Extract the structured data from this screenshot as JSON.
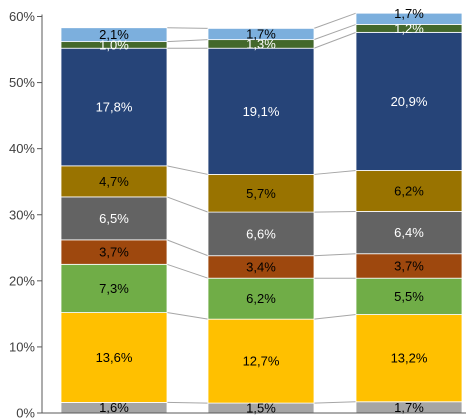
{
  "chart_data": {
    "type": "bar",
    "stacked": true,
    "categories": [
      "",
      "",
      ""
    ],
    "ylim": [
      0,
      60
    ],
    "yticks": [
      0,
      10,
      20,
      30,
      40,
      50,
      60
    ],
    "ytick_labels": [
      "0%",
      "10%",
      "20%",
      "30%",
      "40%",
      "50%",
      "60%"
    ],
    "grid": false,
    "legend": "none",
    "series_lines": true,
    "series": [
      {
        "values": [
          1.6,
          1.5,
          1.7
        ],
        "labels": [
          "1,6%",
          "1,5%",
          "1,7%"
        ],
        "color": "#a5a5a5",
        "label_color": "#000000"
      },
      {
        "values": [
          13.6,
          12.7,
          13.2
        ],
        "labels": [
          "13,6%",
          "12,7%",
          "13,2%"
        ],
        "color": "#ffc000",
        "label_color": "#000000"
      },
      {
        "values": [
          7.3,
          6.2,
          5.5
        ],
        "labels": [
          "7,3%",
          "6,2%",
          "5,5%"
        ],
        "color": "#70ad47",
        "label_color": "#000000"
      },
      {
        "values": [
          3.7,
          3.4,
          3.7
        ],
        "labels": [
          "3,7%",
          "3,4%",
          "3,7%"
        ],
        "color": "#9e480e",
        "label_color": "#000000"
      },
      {
        "values": [
          6.5,
          6.6,
          6.4
        ],
        "labels": [
          "6,5%",
          "6,6%",
          "6,4%"
        ],
        "color": "#636363",
        "label_color": "#ffffff"
      },
      {
        "values": [
          4.7,
          5.7,
          6.2
        ],
        "labels": [
          "4,7%",
          "5,7%",
          "6,2%"
        ],
        "color": "#997300",
        "label_color": "#000000"
      },
      {
        "values": [
          17.8,
          19.1,
          20.9
        ],
        "labels": [
          "17,8%",
          "19,1%",
          "20,9%"
        ],
        "color": "#264478",
        "label_color": "#ffffff"
      },
      {
        "values": [
          1.0,
          1.3,
          1.2
        ],
        "labels": [
          "1,0%",
          "1,3%",
          "1,2%"
        ],
        "color": "#43682b",
        "label_color": "#ffffff"
      },
      {
        "values": [
          2.1,
          1.7,
          1.7
        ],
        "labels": [
          "2,1%",
          "1,7%",
          "1,7%"
        ],
        "color": "#7cafdd",
        "label_color": "#000000"
      }
    ]
  }
}
